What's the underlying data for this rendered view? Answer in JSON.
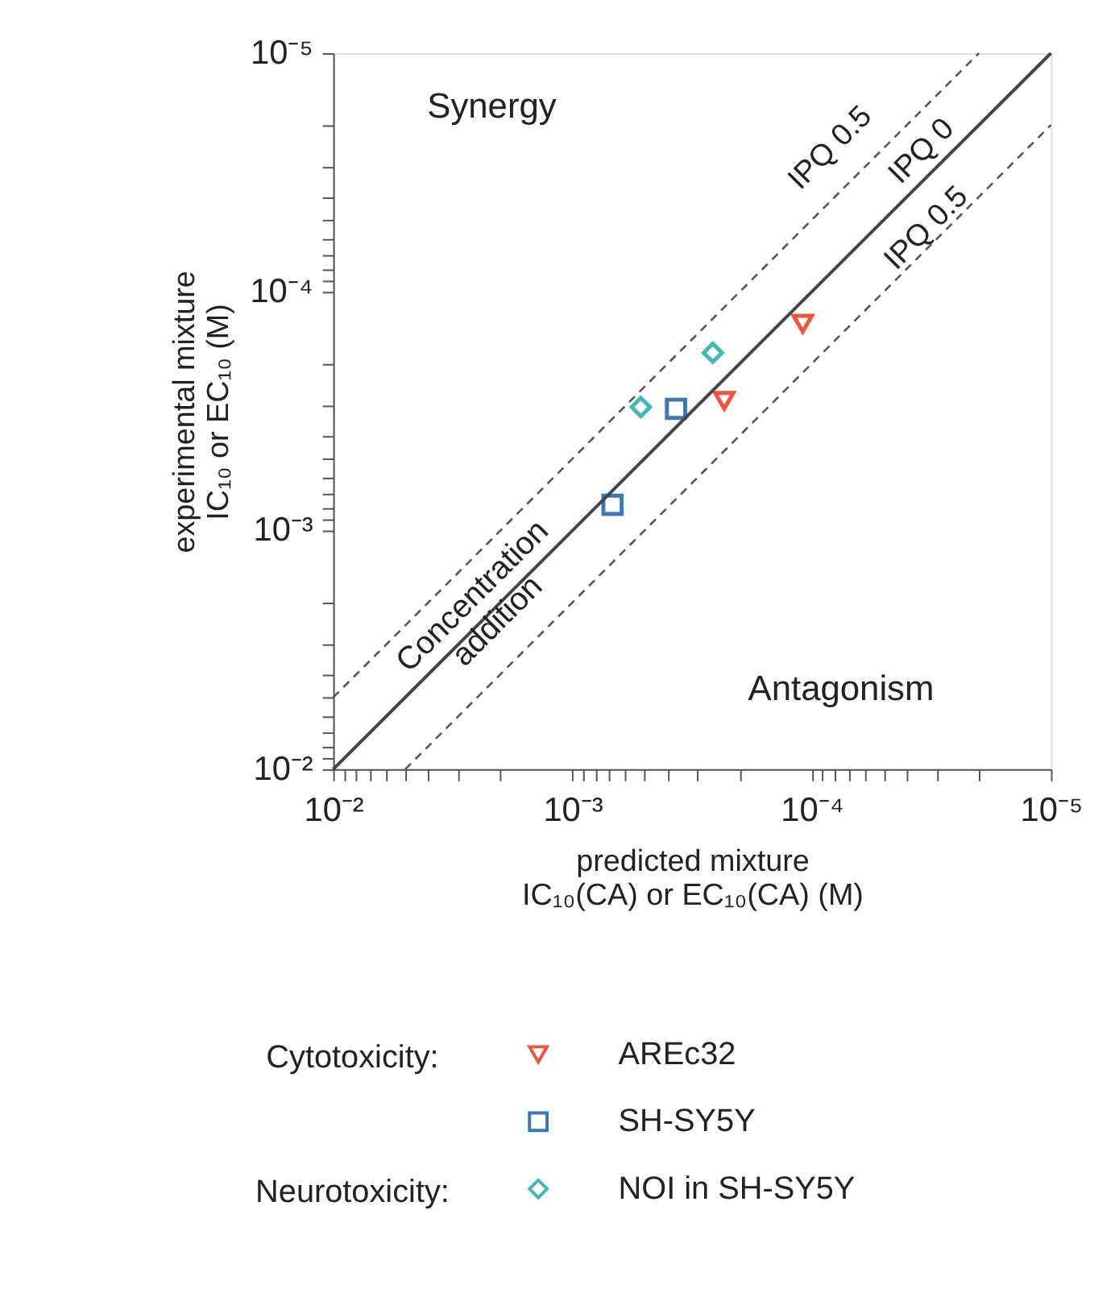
{
  "chart_data": {
    "type": "scatter",
    "xlabel": "predicted mixture\nIC₁₀(CA) or EC₁₀(CA) (M)",
    "ylabel": "experimental  mixture\nIC₁₀ or EC₁₀ (M)",
    "log": "xy",
    "xlim": [
      0.01,
      1e-05
    ],
    "ylim": [
      0.01,
      1e-05
    ],
    "xticks": [
      {
        "value": 0.01,
        "label": "10⁻²"
      },
      {
        "value": 0.001,
        "label": "10⁻³"
      },
      {
        "value": 0.0001,
        "label": "10⁻⁴"
      },
      {
        "value": 1e-05,
        "label": "10⁻⁵"
      },
      {
        "value": 0.009,
        "label": null
      },
      {
        "value": 0.008,
        "label": null
      },
      {
        "value": 0.007,
        "label": null
      },
      {
        "value": 0.006,
        "label": null
      },
      {
        "value": 0.005,
        "label": null
      },
      {
        "value": 0.004,
        "label": null
      },
      {
        "value": 0.003,
        "label": null
      },
      {
        "value": 0.002,
        "label": null
      },
      {
        "value": 0.0009,
        "label": null
      },
      {
        "value": 0.0008,
        "label": null
      },
      {
        "value": 0.0007,
        "label": null
      },
      {
        "value": 0.0006,
        "label": null
      },
      {
        "value": 0.0005,
        "label": null
      },
      {
        "value": 0.0004,
        "label": null
      },
      {
        "value": 0.0003,
        "label": null
      },
      {
        "value": 0.0002,
        "label": null
      },
      {
        "value": 9e-05,
        "label": null
      },
      {
        "value": 8e-05,
        "label": null
      },
      {
        "value": 7e-05,
        "label": null
      },
      {
        "value": 6e-05,
        "label": null
      },
      {
        "value": 5e-05,
        "label": null
      },
      {
        "value": 4e-05,
        "label": null
      },
      {
        "value": 3e-05,
        "label": null
      },
      {
        "value": 2e-05,
        "label": null
      }
    ],
    "yticks": [
      {
        "value": 0.01,
        "label": "10⁻²"
      },
      {
        "value": 0.001,
        "label": "10⁻³"
      },
      {
        "value": 0.0001,
        "label": "10⁻⁴"
      },
      {
        "value": 1e-05,
        "label": "10⁻⁵"
      },
      {
        "value": 0.009,
        "label": null
      },
      {
        "value": 0.008,
        "label": null
      },
      {
        "value": 0.007,
        "label": null
      },
      {
        "value": 0.006,
        "label": null
      },
      {
        "value": 0.005,
        "label": null
      },
      {
        "value": 0.004,
        "label": null
      },
      {
        "value": 0.003,
        "label": null
      },
      {
        "value": 0.002,
        "label": null
      },
      {
        "value": 0.0009,
        "label": null
      },
      {
        "value": 0.0008,
        "label": null
      },
      {
        "value": 0.0007,
        "label": null
      },
      {
        "value": 0.0006,
        "label": null
      },
      {
        "value": 0.0005,
        "label": null
      },
      {
        "value": 0.0004,
        "label": null
      },
      {
        "value": 0.0003,
        "label": null
      },
      {
        "value": 0.0002,
        "label": null
      },
      {
        "value": 9e-05,
        "label": null
      },
      {
        "value": 8e-05,
        "label": null
      },
      {
        "value": 7e-05,
        "label": null
      },
      {
        "value": 6e-05,
        "label": null
      },
      {
        "value": 5e-05,
        "label": null
      },
      {
        "value": 4e-05,
        "label": null
      },
      {
        "value": 3e-05,
        "label": null
      },
      {
        "value": 2e-05,
        "label": null
      }
    ],
    "grid": false,
    "legend": "bottom",
    "series": [
      {
        "name": "AREc32",
        "type": "scatter",
        "marker": "triangle-down",
        "color": "#f0533a",
        "x": [
          0.000109,
          0.000232
        ],
        "values": [
          0.000136,
          0.000286
        ]
      },
      {
        "name": "SH-SY5Y",
        "type": "scatter",
        "marker": "square",
        "color": "#3a78b8",
        "x": [
          0.000369,
          0.00068
        ],
        "values": [
          0.000309,
          0.00078
        ]
      },
      {
        "name": "NOI in SH-SY5Y",
        "type": "scatter",
        "marker": "diamond",
        "color": "#3fb8b8",
        "x": [
          0.000259,
          0.000518
        ],
        "values": [
          0.00018,
          0.000304
        ]
      },
      {
        "type": "line",
        "line_style": "solid",
        "color": "#444444",
        "x": [
          0.01,
          1e-05
        ],
        "values": [
          0.01,
          1e-05
        ]
      },
      {
        "type": "line",
        "line_style": "dashed",
        "color": "#555555",
        "x": [
          0.01,
          2e-05
        ],
        "values": [
          0.005,
          1e-05
        ]
      },
      {
        "type": "line",
        "line_style": "dashed",
        "color": "#555555",
        "x": [
          0.005,
          1e-05
        ],
        "values": [
          0.01,
          2e-05
        ]
      }
    ],
    "annotations": [
      "Synergy",
      "Antagonism",
      "IPQ 0.5",
      "IPQ 0",
      "IPQ 0.5",
      "Concentration\naddition",
      "Cytotoxicity:",
      "Neurotoxicity:"
    ]
  }
}
